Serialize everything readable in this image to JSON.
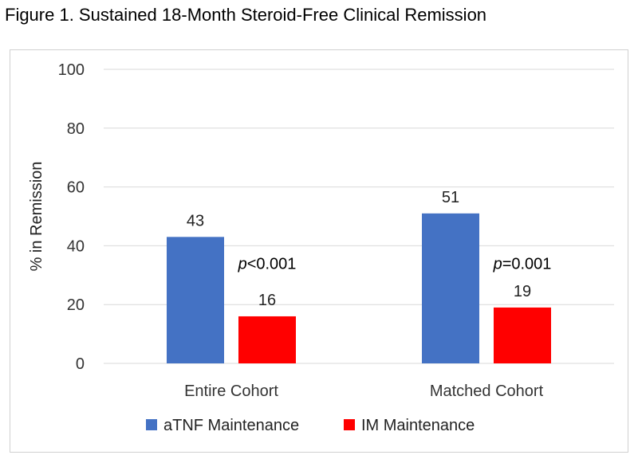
{
  "figure_title": "Figure 1. Sustained 18-Month Steroid-Free Clinical Remission",
  "chart_data": {
    "type": "bar",
    "title": "",
    "xlabel": "",
    "ylabel": "% in Remission",
    "ylim": [
      0,
      100
    ],
    "yticks": [
      0,
      20,
      40,
      60,
      80,
      100
    ],
    "categories": [
      "Entire Cohort",
      "Matched Cohort"
    ],
    "series": [
      {
        "name": "aTNF Maintenance",
        "color": "#4472C4",
        "values": [
          43,
          51
        ]
      },
      {
        "name": "IM Maintenance",
        "color": "#FF0000",
        "values": [
          16,
          19
        ]
      }
    ],
    "annotations": [
      {
        "category": "Entire Cohort",
        "prefix": "p",
        "text": "<0.001"
      },
      {
        "category": "Matched Cohort",
        "prefix": "p",
        "text": "=0.001"
      }
    ],
    "grid": true,
    "legend_position": "bottom"
  }
}
